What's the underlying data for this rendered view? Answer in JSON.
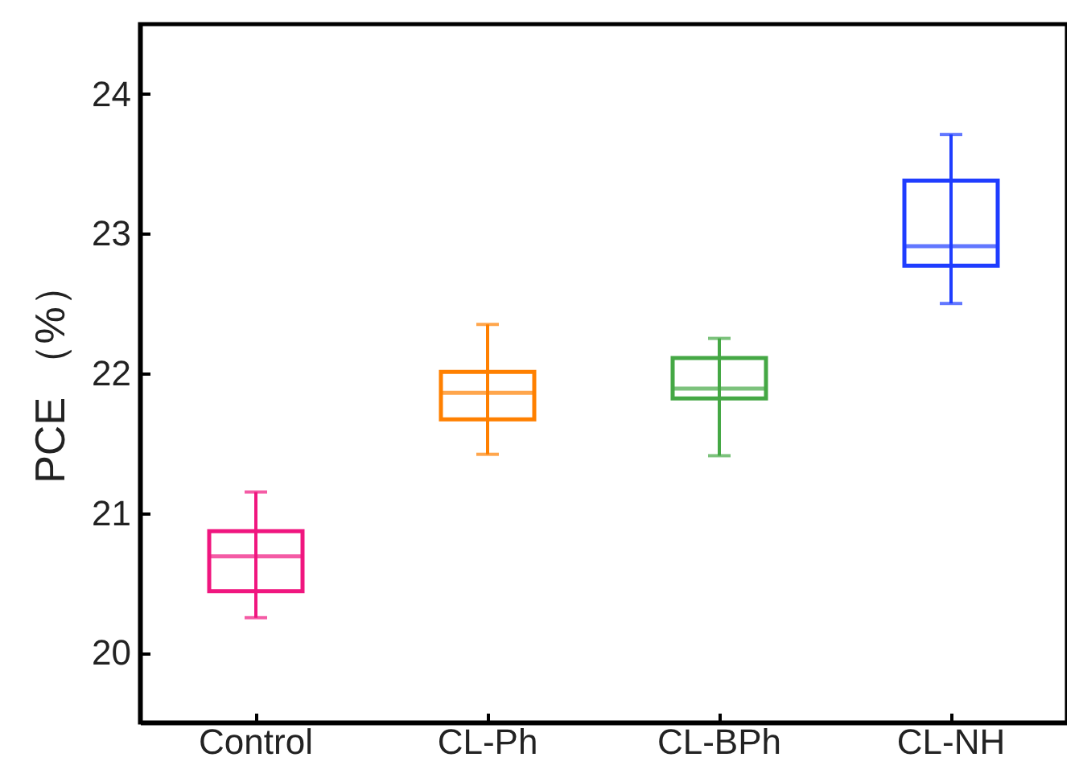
{
  "chart_data": {
    "type": "box",
    "ylabel": "PCE （%）",
    "categories": [
      "Control",
      "CL-Ph",
      "CL-BPh",
      "CL-NH"
    ],
    "colors": [
      "#f0167f",
      "#ff8000",
      "#45a845",
      "#1f3dff"
    ],
    "boxes": [
      {
        "low": 20.25,
        "q1": 20.44,
        "median": 20.69,
        "q3": 20.87,
        "high": 21.15
      },
      {
        "low": 21.42,
        "q1": 21.67,
        "median": 21.86,
        "q3": 22.01,
        "high": 22.35
      },
      {
        "low": 21.41,
        "q1": 21.82,
        "median": 21.89,
        "q3": 22.11,
        "high": 22.25
      },
      {
        "low": 22.5,
        "q1": 22.77,
        "median": 22.91,
        "q3": 23.38,
        "high": 23.71
      }
    ],
    "ylim": [
      19.5,
      24.5
    ],
    "yticks": [
      20,
      21,
      22,
      23,
      24
    ],
    "grid": false,
    "legend": false
  }
}
